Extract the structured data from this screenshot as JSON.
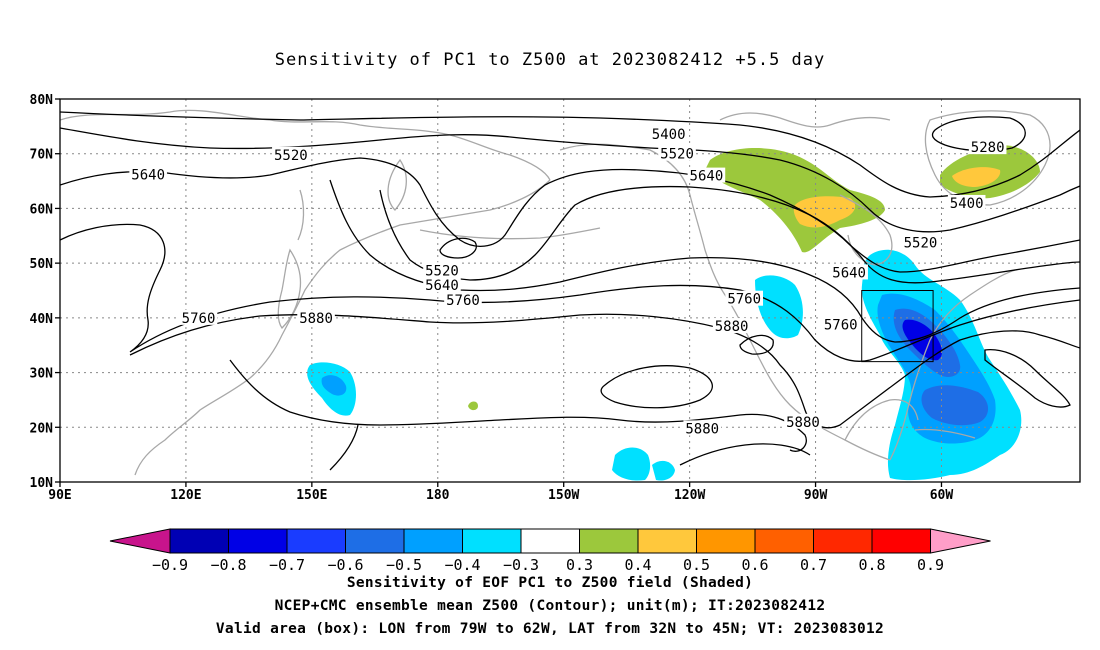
{
  "title": "Sensitivity of PC1 to Z500 at 2023082412 +5.5 day",
  "map": {
    "lat_labels": [
      "80N",
      "70N",
      "60N",
      "50N",
      "40N",
      "30N",
      "20N",
      "10N"
    ],
    "lon_labels": [
      "90E",
      "120E",
      "150E",
      "180",
      "150W",
      "120W",
      "90W",
      "60W"
    ],
    "lon_range": [
      90,
      333
    ],
    "lat_range": [
      10,
      80
    ],
    "contour_interval": 120,
    "contour_labels": [
      {
        "text": "5400",
        "lon": 235,
        "lat": 73.6
      },
      {
        "text": "5520",
        "lon": 145,
        "lat": 69.8
      },
      {
        "text": "5520",
        "lon": 237,
        "lat": 70.0
      },
      {
        "text": "5640",
        "lon": 111,
        "lat": 66.2
      },
      {
        "text": "5640",
        "lon": 244,
        "lat": 66.0
      },
      {
        "text": "5280",
        "lon": 311,
        "lat": 71.2
      },
      {
        "text": "5400",
        "lon": 306,
        "lat": 61.0
      },
      {
        "text": "5520",
        "lon": 295,
        "lat": 53.8
      },
      {
        "text": "5520",
        "lon": 181,
        "lat": 48.7
      },
      {
        "text": "5640",
        "lon": 181,
        "lat": 46.0
      },
      {
        "text": "5760",
        "lon": 186,
        "lat": 43.3
      },
      {
        "text": "5640",
        "lon": 278,
        "lat": 48.3
      },
      {
        "text": "5760",
        "lon": 253,
        "lat": 43.5
      },
      {
        "text": "5760",
        "lon": 276,
        "lat": 38.8
      },
      {
        "text": "5760",
        "lon": 123,
        "lat": 40.0
      },
      {
        "text": "5880",
        "lon": 151,
        "lat": 40.0
      },
      {
        "text": "5880",
        "lon": 250,
        "lat": 38.5
      },
      {
        "text": "5880",
        "lon": 267,
        "lat": 21.0
      },
      {
        "text": "5880",
        "lon": 243,
        "lat": 19.8
      }
    ],
    "valid_box": {
      "lon_min": 281,
      "lon_max": 298,
      "lat_min": 32,
      "lat_max": 45
    }
  },
  "colorbar": {
    "labels": [
      "-0.9",
      "-0.8",
      "-0.7",
      "-0.6",
      "-0.5",
      "-0.4",
      "-0.3",
      "0.3",
      "0.4",
      "0.5",
      "0.6",
      "0.7",
      "0.8",
      "0.9"
    ],
    "colors": [
      "#0000b4",
      "#0000e6",
      "#1a3cff",
      "#1e6ee6",
      "#00a0ff",
      "#00e0ff",
      "#ffffff",
      "#9cc83c",
      "#ffc83c",
      "#ff9600",
      "#ff6000",
      "#ff2800",
      "#ff0000"
    ],
    "under_color": "#c8148c",
    "over_color": "#ff9ec8"
  },
  "captions": {
    "line1": "Sensitivity of EOF PC1 to Z500 field (Shaded)",
    "line2": "NCEP+CMC ensemble mean Z500 (Contour); unit(m); IT:2023082412",
    "line3": "Valid area (box): LON from 79W to 62W, LAT from 32N to 45N; VT: 2023083012"
  }
}
